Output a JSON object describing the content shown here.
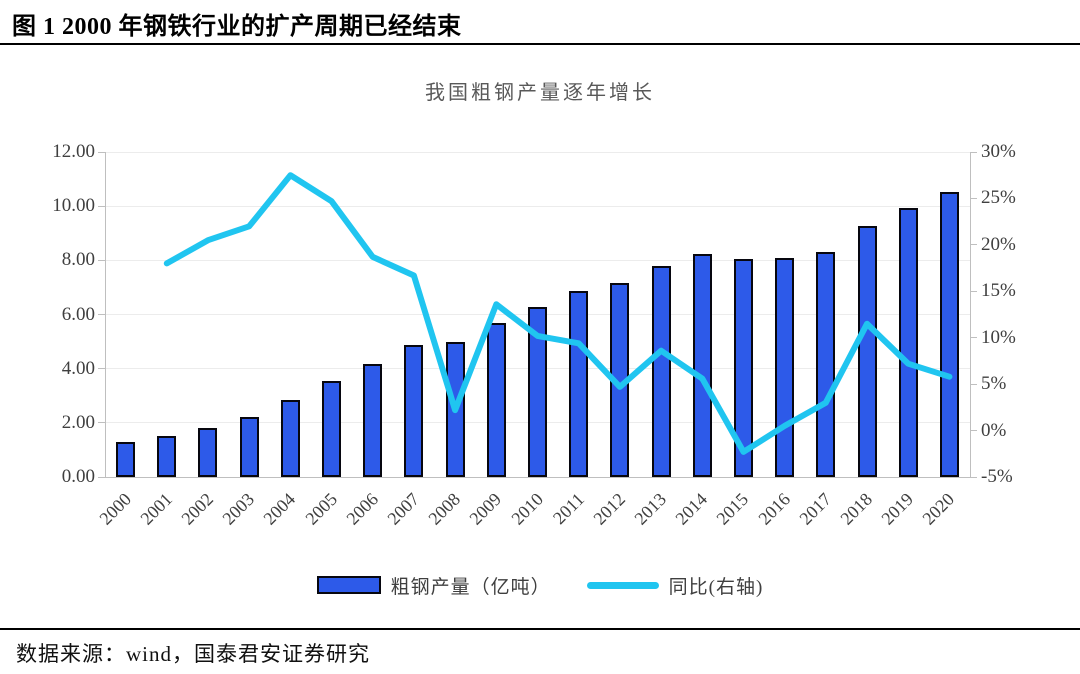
{
  "header": {
    "title": "图 1 2000 年钢铁行业的扩产周期已经结束"
  },
  "chart": {
    "title": "我国粗钢产量逐年增长",
    "legend": {
      "bar": "粗钢产量（亿吨）",
      "line": "同比(右轴)"
    }
  },
  "chart_data": {
    "type": "combo",
    "title": "我国粗钢产量逐年增长",
    "categories": [
      "2000",
      "2001",
      "2002",
      "2003",
      "2004",
      "2005",
      "2006",
      "2007",
      "2008",
      "2009",
      "2010",
      "2011",
      "2012",
      "2013",
      "2014",
      "2015",
      "2016",
      "2017",
      "2018",
      "2019",
      "2020"
    ],
    "series": [
      {
        "name": "粗钢产量（亿吨）",
        "type": "bar",
        "axis": "left",
        "values": [
          1.28,
          1.51,
          1.82,
          2.22,
          2.83,
          3.53,
          4.19,
          4.89,
          5.0,
          5.68,
          6.26,
          6.85,
          7.17,
          7.79,
          8.23,
          8.04,
          8.08,
          8.32,
          9.28,
          9.95,
          10.53
        ]
      },
      {
        "name": "同比(右轴)",
        "type": "line",
        "axis": "right",
        "values": [
          null,
          18.0,
          20.5,
          22.0,
          27.5,
          24.7,
          18.7,
          16.7,
          2.2,
          13.6,
          10.2,
          9.4,
          4.7,
          8.6,
          5.6,
          -2.3,
          0.5,
          3.0,
          11.5,
          7.2,
          5.8
        ]
      }
    ],
    "left_axis": {
      "min": 0,
      "max": 12,
      "step": 2,
      "tick_labels": [
        "0.00",
        "2.00",
        "4.00",
        "6.00",
        "8.00",
        "10.00",
        "12.00"
      ]
    },
    "right_axis": {
      "min": -5,
      "max": 30,
      "step": 5,
      "tick_labels": [
        "-5%",
        "0%",
        "5%",
        "10%",
        "15%",
        "20%",
        "25%",
        "30%"
      ]
    },
    "grid": "horizontal",
    "legend_position": "bottom"
  },
  "colors": {
    "bar_fill": "#2d5ae9",
    "bar_border": "#07070f",
    "line": "#20c5f0",
    "axis": "#bfbfbf",
    "grid": "#ececec",
    "tick_text": "#3f3f3f",
    "chart_title_text": "#595959"
  },
  "footer": {
    "source": "数据来源：wind，国泰君安证券研究"
  }
}
